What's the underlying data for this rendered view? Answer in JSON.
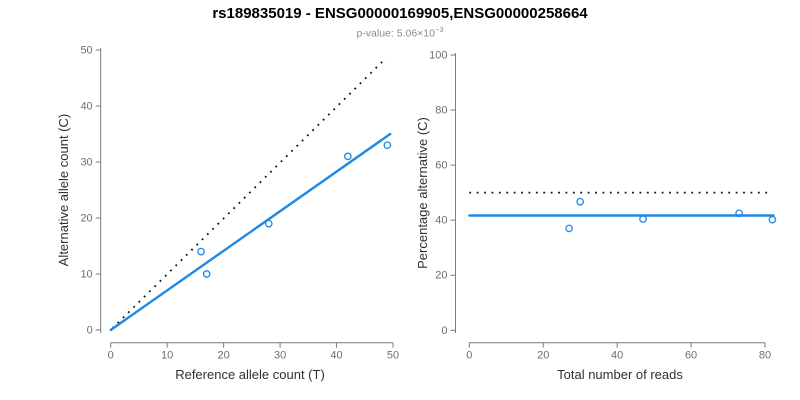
{
  "header": {
    "title": "rs189835019 - ENSG00000169905,ENSG00000258664",
    "pvalue_label": "p-value: 5.06×10",
    "pvalue_exponent": "−3"
  },
  "colors": {
    "accent_blue": "#1E88E5",
    "dotted_line": "#111111",
    "axis_gray": "#7a7a7a"
  },
  "chart_data": [
    {
      "type": "scatter",
      "title": "",
      "xlabel": "Reference allele count (T)",
      "ylabel": "Alternative allele count (C)",
      "xlim": [
        0,
        50
      ],
      "ylim": [
        0,
        50
      ],
      "xticks": [
        0,
        10,
        20,
        30,
        40,
        50
      ],
      "yticks": [
        0,
        10,
        20,
        30,
        40,
        50
      ],
      "grid": false,
      "legend": "none",
      "point_color": "#1E88E5",
      "points": [
        [
          16,
          14
        ],
        [
          17,
          10
        ],
        [
          28,
          19
        ],
        [
          42,
          31
        ],
        [
          49,
          33
        ]
      ],
      "lines": [
        {
          "name": "identity-dotted-line",
          "style": "dotted",
          "color": "#111111",
          "from": [
            0.3,
            0.3
          ],
          "to": [
            48.8,
            48.6
          ]
        },
        {
          "name": "fit-line",
          "style": "solid",
          "color": "#1E88E5",
          "from": [
            0,
            0
          ],
          "to": [
            49.5,
            35
          ]
        }
      ]
    },
    {
      "type": "scatter",
      "title": "",
      "xlabel": "Total number of reads",
      "ylabel": "Percentage alternative (C)",
      "xlim": [
        0,
        80
      ],
      "ylim": [
        0,
        100
      ],
      "xticks": [
        0,
        20,
        40,
        60,
        80
      ],
      "yticks": [
        0,
        20,
        40,
        60,
        80,
        100
      ],
      "grid": false,
      "legend": "none",
      "point_color": "#1E88E5",
      "points": [
        [
          30,
          46.7
        ],
        [
          27,
          37.0
        ],
        [
          47,
          40.4
        ],
        [
          73,
          42.5
        ],
        [
          82,
          40.2
        ]
      ],
      "lines": [
        {
          "name": "expected-50pct-dotted-line",
          "style": "dotted",
          "color": "#111111",
          "from": [
            0,
            50
          ],
          "to": [
            80.9,
            50
          ]
        },
        {
          "name": "mean-percentage-line",
          "style": "solid",
          "color": "#1E88E5",
          "from": [
            0,
            41.7
          ],
          "to": [
            82.3,
            41.7
          ]
        }
      ]
    }
  ]
}
